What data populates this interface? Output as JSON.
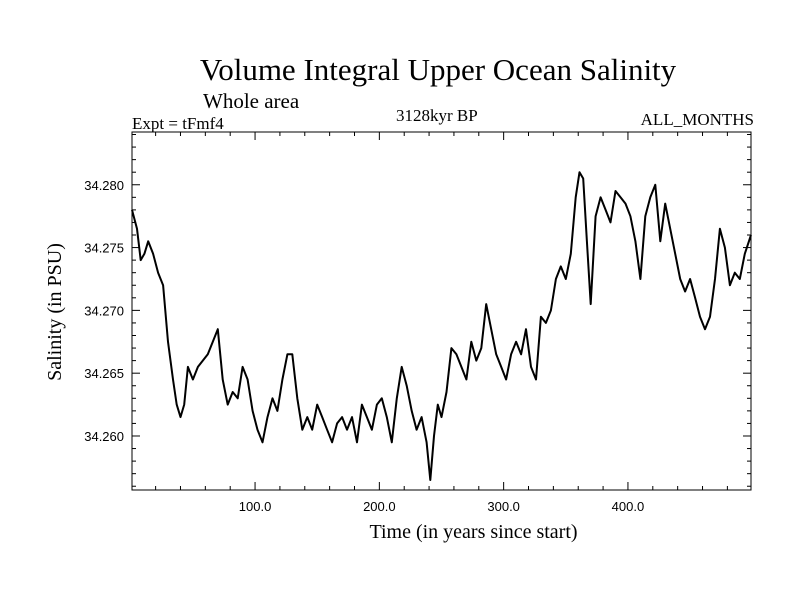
{
  "chart_data": {
    "type": "line",
    "title": "Volume Integral Upper Ocean Salinity",
    "subtitle": "Whole area",
    "experiment_label": "Expt = tFmf4",
    "period_label": "3128kyr BP",
    "months_label": "ALL_MONTHS",
    "xlabel": "Time (in years since start)",
    "ylabel": "Salinity (in PSU)",
    "xlim": [
      1,
      499
    ],
    "ylim": [
      34.2557,
      34.2842
    ],
    "xticks": [
      100,
      200,
      300,
      400
    ],
    "xtick_labels": [
      "100.0",
      "200.0",
      "300.0",
      "400.0"
    ],
    "yticks": [
      34.26,
      34.265,
      34.27,
      34.275,
      34.28
    ],
    "ytick_labels": [
      "34.260",
      "34.265",
      "34.270",
      "34.275",
      "34.280"
    ],
    "grid": false,
    "line_color": "#000000",
    "series": [
      {
        "name": "salinity",
        "x": [
          1,
          5,
          8,
          11,
          14,
          18,
          22,
          26,
          30,
          34,
          37,
          40,
          43,
          46,
          50,
          54,
          58,
          62,
          66,
          70,
          74,
          78,
          82,
          86,
          90,
          94,
          98,
          102,
          106,
          110,
          114,
          118,
          122,
          126,
          130,
          134,
          138,
          142,
          146,
          150,
          154,
          158,
          162,
          166,
          170,
          174,
          178,
          182,
          186,
          190,
          194,
          198,
          202,
          206,
          210,
          214,
          218,
          222,
          226,
          230,
          234,
          238,
          241,
          244,
          247,
          250,
          254,
          258,
          262,
          266,
          270,
          274,
          278,
          282,
          286,
          290,
          294,
          298,
          302,
          306,
          310,
          314,
          318,
          322,
          326,
          330,
          334,
          338,
          342,
          346,
          350,
          354,
          358,
          361,
          364,
          367,
          370,
          374,
          378,
          382,
          386,
          390,
          394,
          398,
          402,
          406,
          410,
          414,
          418,
          422,
          426,
          430,
          434,
          438,
          442,
          446,
          450,
          454,
          458,
          462,
          466,
          470,
          474,
          478,
          482,
          486,
          490,
          494,
          499
        ],
        "values": [
          34.278,
          34.2765,
          34.274,
          34.2745,
          34.2755,
          34.2745,
          34.273,
          34.272,
          34.2675,
          34.2645,
          34.2625,
          34.2615,
          34.2625,
          34.2655,
          34.2645,
          34.2655,
          34.266,
          34.2665,
          34.2675,
          34.2685,
          34.2645,
          34.2625,
          34.2635,
          34.263,
          34.2655,
          34.2645,
          34.262,
          34.2605,
          34.2595,
          34.2615,
          34.263,
          34.262,
          34.2645,
          34.2665,
          34.2665,
          34.263,
          34.2605,
          34.2615,
          34.2605,
          34.2625,
          34.2615,
          34.2605,
          34.2595,
          34.261,
          34.2615,
          34.2605,
          34.2615,
          34.2595,
          34.2625,
          34.2615,
          34.2605,
          34.2625,
          34.263,
          34.2615,
          34.2595,
          34.263,
          34.2655,
          34.264,
          34.262,
          34.2605,
          34.2615,
          34.2595,
          34.2565,
          34.26,
          34.2625,
          34.2615,
          34.2635,
          34.267,
          34.2665,
          34.2655,
          34.2645,
          34.2675,
          34.266,
          34.267,
          34.2705,
          34.2685,
          34.2665,
          34.2655,
          34.2645,
          34.2665,
          34.2675,
          34.2665,
          34.2685,
          34.2655,
          34.2645,
          34.2695,
          34.269,
          34.27,
          34.2725,
          34.2735,
          34.2725,
          34.2745,
          34.279,
          34.281,
          34.2805,
          34.2755,
          34.2705,
          34.2775,
          34.279,
          34.278,
          34.277,
          34.2795,
          34.279,
          34.2785,
          34.2775,
          34.2755,
          34.2725,
          34.2775,
          34.279,
          34.28,
          34.2755,
          34.2785,
          34.2765,
          34.2745,
          34.2725,
          34.2715,
          34.2725,
          34.271,
          34.2695,
          34.2685,
          34.2695,
          34.2725,
          34.2765,
          34.275,
          34.272,
          34.273,
          34.2725,
          34.2745,
          34.276
        ]
      }
    ]
  }
}
